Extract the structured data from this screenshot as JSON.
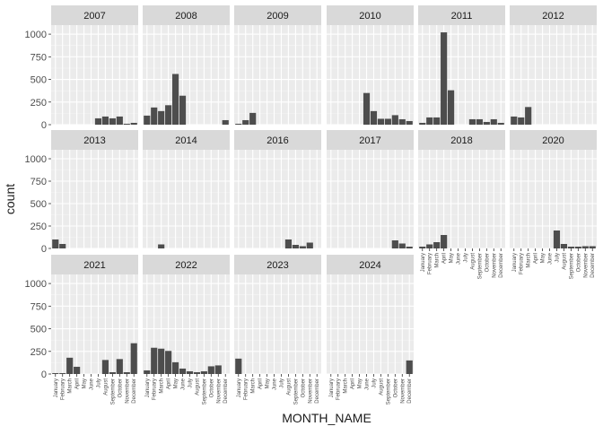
{
  "chart_data": {
    "type": "bar",
    "facet_layout": "wrap",
    "xlabel": "MONTH_NAME",
    "ylabel": "count",
    "ylim": [
      0,
      1100
    ],
    "y_ticks": [
      0,
      250,
      500,
      750,
      1000
    ],
    "categories": [
      "January",
      "February",
      "March",
      "April",
      "May",
      "June",
      "July",
      "August",
      "September",
      "October",
      "November",
      "December"
    ],
    "bar_color": "#4d4d4d",
    "strip_fill": "#d9d9d9",
    "panel_background": "#ebebeb",
    "grid": true,
    "panels": [
      {
        "title": "2007",
        "values": [
          0,
          0,
          0,
          0,
          0,
          0,
          70,
          90,
          70,
          90,
          10,
          20
        ]
      },
      {
        "title": "2008",
        "values": [
          100,
          190,
          150,
          215,
          560,
          320,
          0,
          0,
          0,
          0,
          0,
          50
        ]
      },
      {
        "title": "2009",
        "values": [
          10,
          50,
          130,
          0,
          0,
          0,
          0,
          0,
          0,
          0,
          0,
          0
        ]
      },
      {
        "title": "2010",
        "values": [
          0,
          0,
          0,
          0,
          0,
          350,
          150,
          65,
          65,
          105,
          60,
          40
        ]
      },
      {
        "title": "2011",
        "values": [
          20,
          80,
          80,
          1020,
          380,
          0,
          0,
          60,
          60,
          30,
          60,
          20
        ]
      },
      {
        "title": "2012",
        "values": [
          90,
          80,
          195,
          0,
          0,
          0,
          0,
          0,
          0,
          0,
          0,
          0
        ]
      },
      {
        "title": "2013",
        "values": [
          100,
          50,
          0,
          0,
          0,
          0,
          0,
          0,
          0,
          0,
          0,
          0
        ]
      },
      {
        "title": "2014",
        "values": [
          0,
          0,
          45,
          0,
          0,
          0,
          0,
          0,
          0,
          0,
          0,
          0
        ]
      },
      {
        "title": "2016",
        "values": [
          0,
          0,
          0,
          0,
          0,
          0,
          0,
          100,
          40,
          25,
          65,
          0
        ]
      },
      {
        "title": "2017",
        "values": [
          0,
          0,
          0,
          0,
          0,
          0,
          0,
          0,
          0,
          90,
          55,
          20
        ]
      },
      {
        "title": "2018",
        "values": [
          20,
          45,
          70,
          150,
          0,
          0,
          0,
          0,
          0,
          0,
          0,
          0
        ]
      },
      {
        "title": "2020",
        "values": [
          0,
          0,
          0,
          0,
          0,
          0,
          200,
          50,
          20,
          20,
          25,
          25
        ]
      },
      {
        "title": "2021",
        "values": [
          10,
          10,
          180,
          80,
          0,
          0,
          0,
          155,
          20,
          165,
          20,
          340
        ]
      },
      {
        "title": "2022",
        "values": [
          40,
          290,
          280,
          255,
          130,
          60,
          30,
          20,
          30,
          85,
          95,
          0
        ]
      },
      {
        "title": "2023",
        "values": [
          170,
          0,
          0,
          0,
          0,
          0,
          0,
          0,
          0,
          0,
          0,
          0
        ]
      },
      {
        "title": "2024",
        "values": [
          0,
          0,
          0,
          0,
          0,
          0,
          0,
          0,
          0,
          0,
          0,
          150
        ]
      }
    ]
  }
}
